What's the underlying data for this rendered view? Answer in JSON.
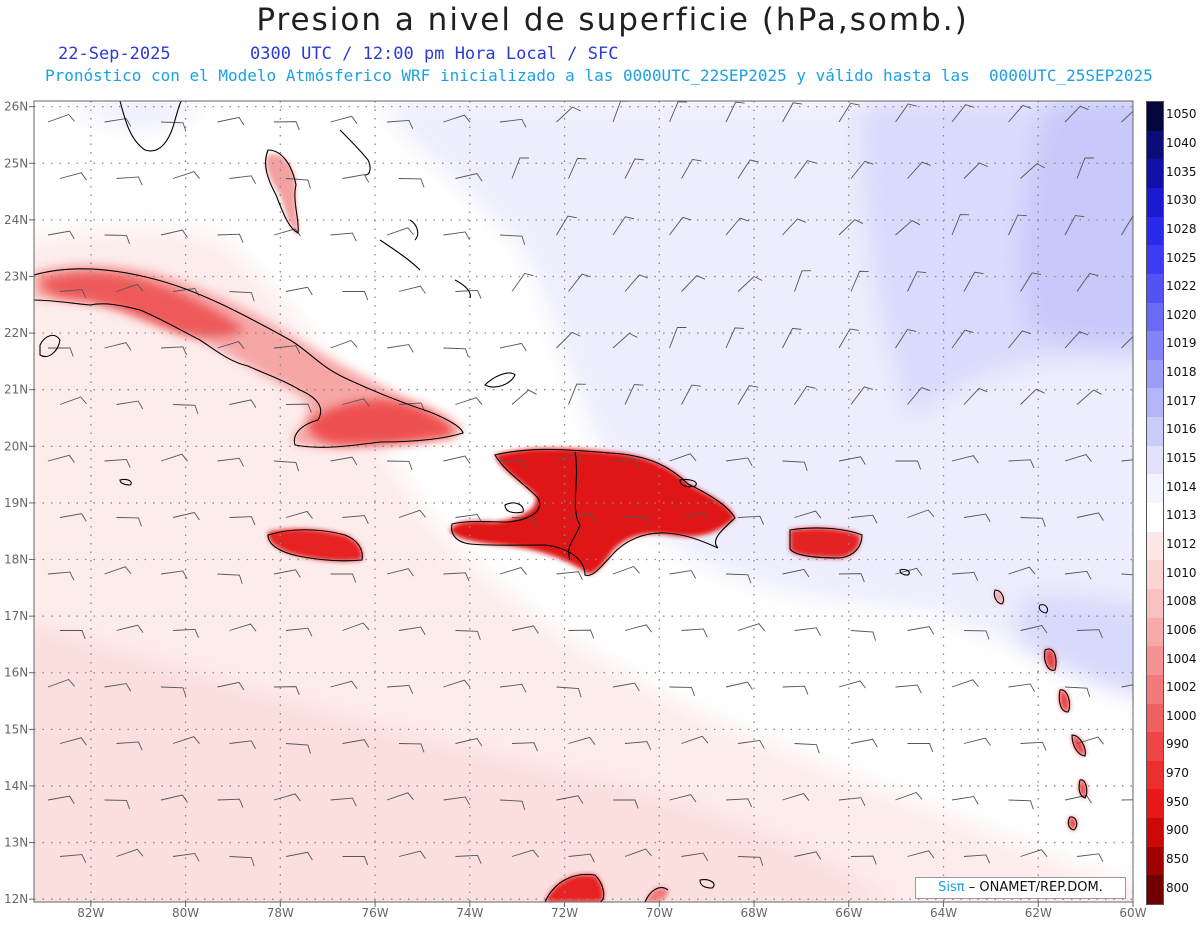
{
  "header": {
    "title": "Presion a nivel de superficie (hPa,somb.)",
    "date": "22-Sep-2025",
    "time": "0300 UTC / 12:00 pm Hora Local / SFC",
    "forecast": "Pronóstico con el Modelo Atmósferico WRF inicializado a las 0000UTC_22SEP2025 y válido hasta las  0000UTC_25SEP2025"
  },
  "axes": {
    "lat_labels": [
      "26N",
      "25N",
      "24N",
      "23N",
      "22N",
      "21N",
      "20N",
      "19N",
      "18N",
      "17N",
      "16N",
      "15N",
      "14N",
      "13N",
      "12N"
    ],
    "lon_labels": [
      "82W",
      "80W",
      "78W",
      "76W",
      "74W",
      "72W",
      "70W",
      "68W",
      "66W",
      "64W",
      "62W",
      "60W"
    ],
    "lat_range": [
      12,
      26
    ],
    "lon_range": [
      -83.2,
      -60
    ]
  },
  "colorbar": {
    "levels": [
      "1050",
      "1040",
      "1035",
      "1030",
      "1028",
      "1025",
      "1022",
      "1020",
      "1019",
      "1018",
      "1017",
      "1016",
      "1015",
      "1014",
      "1013",
      "1012",
      "1010",
      "1008",
      "1006",
      "1004",
      "1002",
      "1000",
      "990",
      "970",
      "950",
      "900",
      "850",
      "800"
    ],
    "colors": [
      "#06063f",
      "#0c0c78",
      "#1010a8",
      "#1a1ad0",
      "#2a2aec",
      "#3c3cf2",
      "#5353f5",
      "#6a6af7",
      "#8484f8",
      "#9c9cf9",
      "#b4b4fb",
      "#cbcbfc",
      "#e2e2fd",
      "#f4f4fe",
      "#ffffff",
      "#fde6e6",
      "#fbd4d4",
      "#f9c2c2",
      "#f7aaaa",
      "#f59292",
      "#f37a7a",
      "#f16060",
      "#ee4646",
      "#ec2e2e",
      "#e81818",
      "#cc0808",
      "#a00000",
      "#700000"
    ]
  },
  "credit": {
    "brand": "Sisπ",
    "text": "– ONAMET/REP.DOM."
  }
}
